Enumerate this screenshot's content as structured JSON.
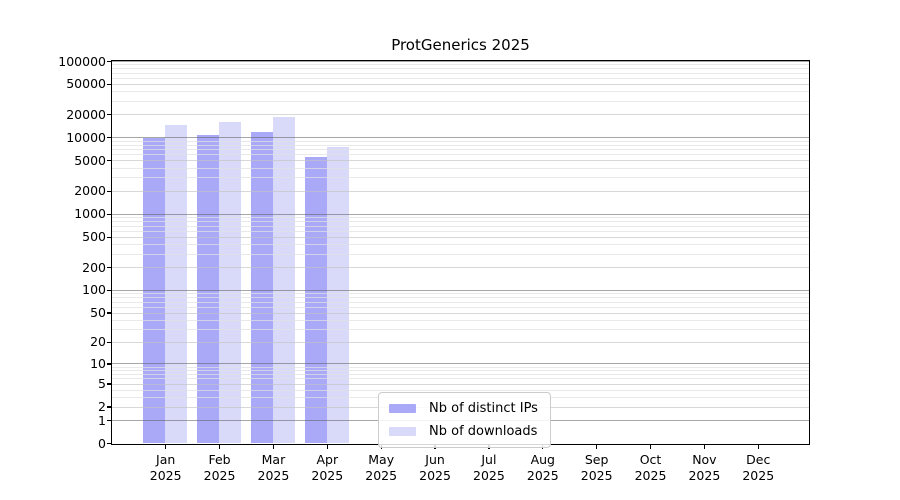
{
  "title": "ProtGenerics 2025",
  "chart_data": {
    "type": "bar",
    "title": "ProtGenerics 2025",
    "categories": [
      "Jan",
      "Feb",
      "Mar",
      "Apr",
      "May",
      "Jun",
      "Jul",
      "Aug",
      "Sep",
      "Oct",
      "Nov",
      "Dec"
    ],
    "category_year": "2025",
    "series": [
      {
        "name": "Nb of distinct IPs",
        "color": "#a9a9f8",
        "values": [
          9700,
          10900,
          11700,
          5500,
          null,
          null,
          null,
          null,
          null,
          null,
          null,
          null
        ]
      },
      {
        "name": "Nb of downloads",
        "color": "#d9d9fa",
        "values": [
          14600,
          15900,
          18500,
          7600,
          null,
          null,
          null,
          null,
          null,
          null,
          null,
          null
        ]
      }
    ],
    "yscale": "log10(1+x)",
    "ylim": [
      0,
      100000
    ],
    "y_ticks": [
      0,
      1,
      2,
      5,
      10,
      20,
      50,
      100,
      200,
      500,
      1000,
      2000,
      5000,
      10000,
      20000,
      50000,
      100000
    ],
    "grid": true,
    "grid_colors": {
      "power_of_ten": "#a4a4a4",
      "labeled": "#d9d9d9",
      "minor": "#eaeaea"
    },
    "legend_position": "lower center",
    "xlabel": "",
    "ylabel": ""
  },
  "legend": {
    "items": [
      {
        "label": "Nb of distinct IPs"
      },
      {
        "label": "Nb of downloads"
      }
    ]
  }
}
